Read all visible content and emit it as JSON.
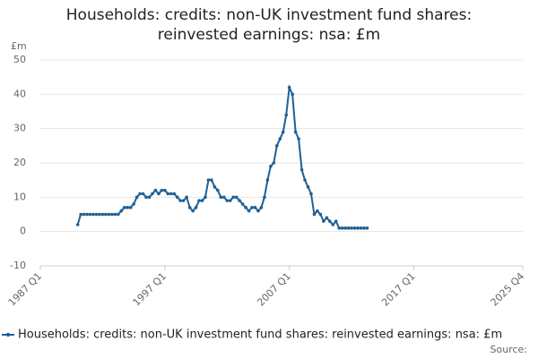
{
  "chart_data": {
    "type": "line",
    "title": "Households: credits: non-UK investment fund shares: reinvested earnings: nsa: £m",
    "y_label": "£m",
    "source": "Source:",
    "xlim": [
      "1987 Q1",
      "2025 Q4"
    ],
    "xticks": [
      "1987 Q1",
      "1997 Q1",
      "2007 Q1",
      "2017 Q1",
      "2025 Q4"
    ],
    "ylim": [
      -10,
      50
    ],
    "yticks": [
      -10,
      0,
      10,
      20,
      30,
      40,
      50
    ],
    "grid": true,
    "legend": "bottom",
    "x": [
      "1990 Q1",
      "1990 Q2",
      "1990 Q3",
      "1990 Q4",
      "1991 Q1",
      "1991 Q2",
      "1991 Q3",
      "1991 Q4",
      "1992 Q1",
      "1992 Q2",
      "1992 Q3",
      "1992 Q4",
      "1993 Q1",
      "1993 Q2",
      "1993 Q3",
      "1993 Q4",
      "1994 Q1",
      "1994 Q2",
      "1994 Q3",
      "1994 Q4",
      "1995 Q1",
      "1995 Q2",
      "1995 Q3",
      "1995 Q4",
      "1996 Q1",
      "1996 Q2",
      "1996 Q3",
      "1996 Q4",
      "1997 Q1",
      "1997 Q2",
      "1997 Q3",
      "1997 Q4",
      "1998 Q1",
      "1998 Q2",
      "1998 Q3",
      "1998 Q4",
      "1999 Q1",
      "1999 Q2",
      "1999 Q3",
      "1999 Q4",
      "2000 Q1",
      "2000 Q2",
      "2000 Q3",
      "2000 Q4",
      "2001 Q1",
      "2001 Q2",
      "2001 Q3",
      "2001 Q4",
      "2002 Q1",
      "2002 Q2",
      "2002 Q3",
      "2002 Q4",
      "2003 Q1",
      "2003 Q2",
      "2003 Q3",
      "2003 Q4",
      "2004 Q1",
      "2004 Q2",
      "2004 Q3",
      "2004 Q4",
      "2005 Q1",
      "2005 Q2",
      "2005 Q3",
      "2005 Q4",
      "2006 Q1",
      "2006 Q2",
      "2006 Q3",
      "2006 Q4",
      "2007 Q1",
      "2007 Q2",
      "2007 Q3",
      "2007 Q4",
      "2008 Q1",
      "2008 Q2",
      "2008 Q3",
      "2008 Q4",
      "2009 Q1",
      "2009 Q2",
      "2009 Q3",
      "2009 Q4",
      "2010 Q1",
      "2010 Q2",
      "2010 Q3",
      "2010 Q4",
      "2011 Q1",
      "2011 Q2",
      "2011 Q3",
      "2011 Q4",
      "2012 Q1",
      "2012 Q2",
      "2012 Q3",
      "2012 Q4",
      "2013 Q1",
      "2013 Q2"
    ],
    "series": [
      {
        "name": "Households: credits: non-UK investment fund shares: reinvested earnings: nsa: £m",
        "color": "#206095",
        "values": [
          2,
          5,
          5,
          5,
          5,
          5,
          5,
          5,
          5,
          5,
          5,
          5,
          5,
          5,
          6,
          7,
          7,
          7,
          8,
          10,
          11,
          11,
          10,
          10,
          11,
          12,
          11,
          12,
          12,
          11,
          11,
          11,
          10,
          9,
          9,
          10,
          7,
          6,
          7,
          9,
          9,
          10,
          15,
          15,
          13,
          12,
          10,
          10,
          9,
          9,
          10,
          10,
          9,
          8,
          7,
          6,
          7,
          7,
          6,
          7,
          10,
          15,
          19,
          20,
          25,
          27,
          29,
          34,
          42,
          40,
          29,
          27,
          18,
          15,
          13,
          11,
          5,
          6,
          5,
          3,
          4,
          3,
          2,
          3,
          1,
          1,
          1,
          1,
          1,
          1,
          1,
          1,
          1,
          1
        ]
      }
    ]
  }
}
